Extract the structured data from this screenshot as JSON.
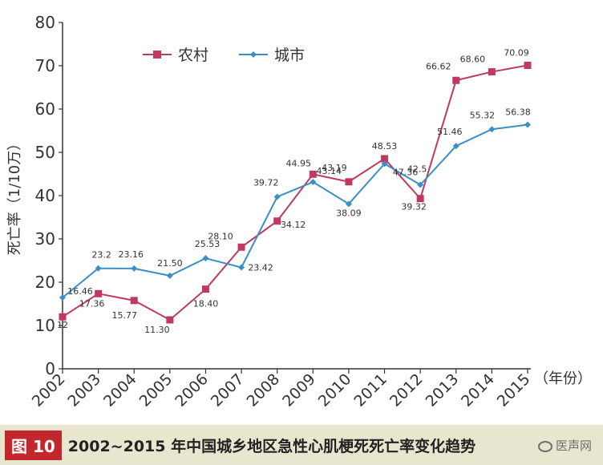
{
  "chart_data": {
    "type": "line",
    "x": [
      "2002",
      "2003",
      "2004",
      "2005",
      "2006",
      "2007",
      "2008",
      "2009",
      "2010",
      "2011",
      "2012",
      "2013",
      "2014",
      "2015"
    ],
    "x_suffix": "（年份）",
    "ylabel": "死亡率（1/10万）",
    "ylim": [
      0,
      80
    ],
    "yticks": [
      0,
      10,
      20,
      30,
      40,
      50,
      60,
      70,
      80
    ],
    "legend_position": "top-left",
    "grid": false,
    "series": [
      {
        "name": "农村",
        "color": "#c0395f",
        "marker": "square",
        "values": [
          12,
          17.36,
          15.77,
          11.3,
          18.4,
          28.1,
          34.12,
          44.95,
          43.19,
          48.53,
          39.32,
          66.62,
          68.6,
          70.09
        ],
        "labels": [
          "12",
          "17.36",
          "15.77",
          "11.30",
          "18.40",
          "28.10",
          "34.12",
          "44.95",
          "43.19",
          "48.53",
          "39.32",
          "66.62",
          "68.60",
          "70.09"
        ]
      },
      {
        "name": "城市",
        "color": "#3a8fc4",
        "marker": "diamond",
        "values": [
          16.46,
          23.2,
          23.16,
          21.5,
          25.53,
          23.42,
          39.72,
          43.14,
          38.09,
          47.36,
          42.5,
          51.46,
          55.32,
          56.38
        ],
        "labels": [
          "16.46",
          "23.2",
          "23.16",
          "21.50",
          "25.53",
          "23.42",
          "39.72",
          "43.14",
          "38.09",
          "47.36",
          "42.5",
          "51.46",
          "55.32",
          "56.38"
        ]
      }
    ]
  },
  "caption": {
    "figure_label": "图 10",
    "title": "2002~2015 年中国城乡地区急性心肌梗死死亡率变化趋势"
  },
  "watermark": "医声网"
}
